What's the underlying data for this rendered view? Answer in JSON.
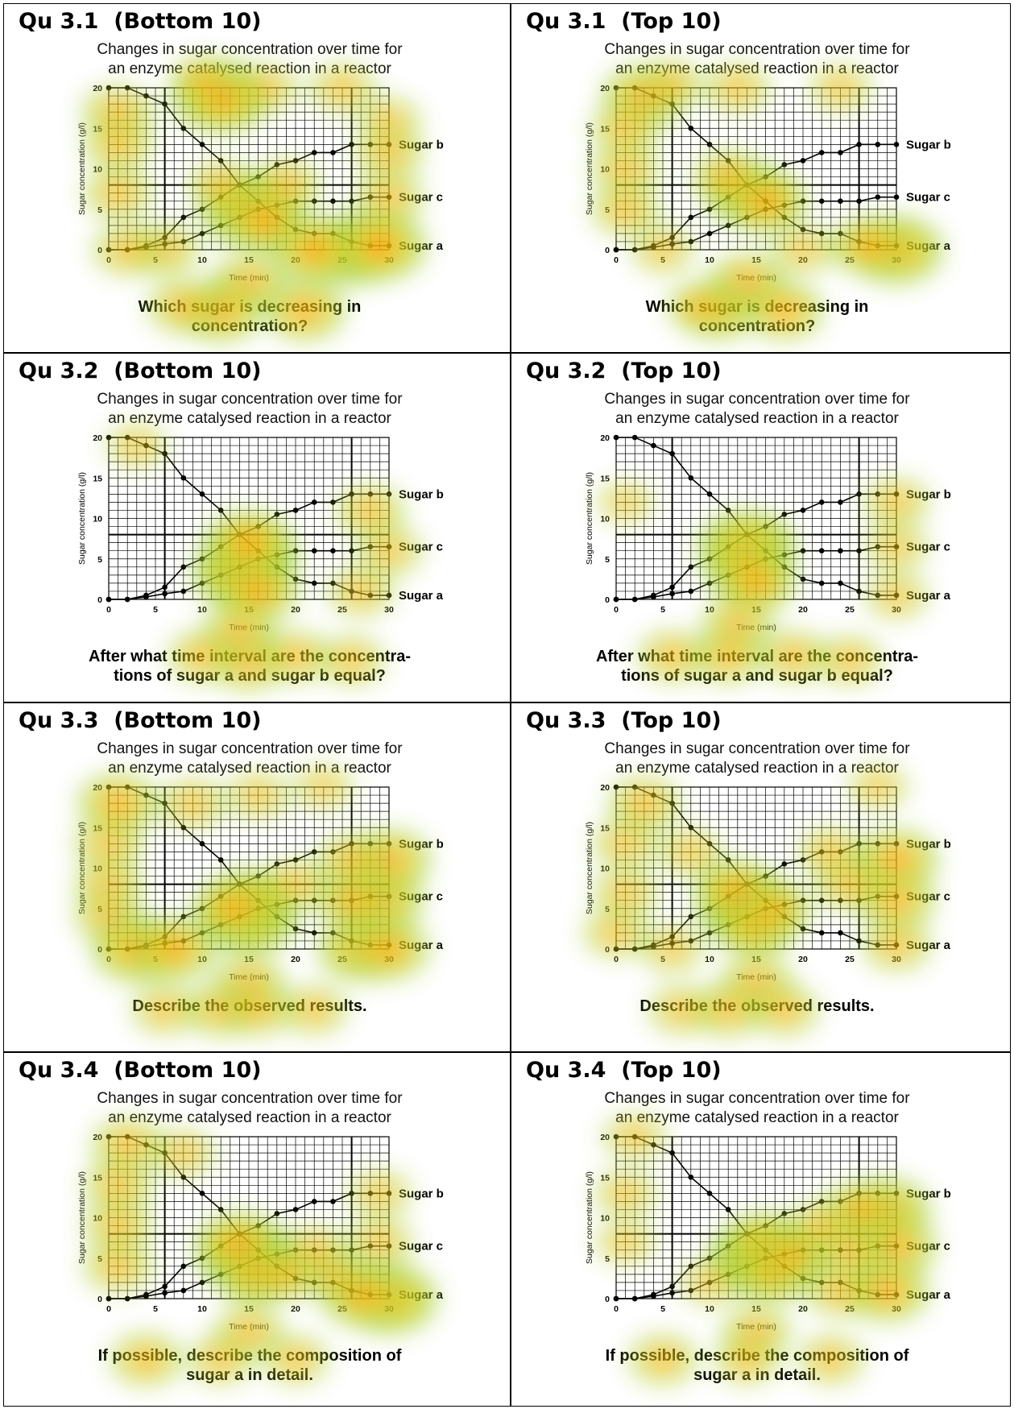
{
  "panels": [
    {
      "title": "Qu 3.1  (Bottom 10)",
      "question": [
        "Which sugar is decreasing in",
        "concentration?"
      ],
      "hotspots": [
        [
          12,
          19,
          1.0
        ],
        [
          1,
          17,
          0.55
        ],
        [
          1,
          13,
          0.5
        ],
        [
          1,
          7,
          0.5
        ],
        [
          15,
          5,
          1.0
        ],
        [
          17,
          3.5,
          0.7
        ],
        [
          26,
          0,
          0.95
        ],
        [
          29,
          0.5,
          0.9
        ],
        [
          22,
          0,
          0.8
        ],
        [
          6,
          0,
          0.5
        ],
        [
          2,
          0,
          0.5
        ],
        [
          19,
          8,
          0.5
        ],
        [
          12,
          8,
          0.45
        ],
        [
          30,
          12,
          0.5
        ],
        [
          30,
          6.5,
          0.5
        ],
        [
          30,
          16,
          0.4
        ],
        [
          17,
          20,
          0.4
        ],
        [
          25,
          20,
          0.45
        ],
        [
          10,
          21,
          0.4
        ],
        [
          15,
          -4,
          0.6
        ],
        [
          12,
          -7.5,
          0.75
        ],
        [
          21,
          -7.5,
          0.7
        ],
        [
          8,
          -7,
          0.55
        ]
      ]
    },
    {
      "title": "Qu 3.1  (Top 10)",
      "question": [
        "Which sugar is decreasing in",
        "concentration?"
      ],
      "hotspots": [
        [
          3,
          19,
          0.75
        ],
        [
          1,
          15,
          0.5
        ],
        [
          1,
          10,
          0.5
        ],
        [
          1,
          5,
          0.5
        ],
        [
          14,
          7,
          0.8
        ],
        [
          16,
          6,
          0.75
        ],
        [
          12,
          9,
          0.55
        ],
        [
          30,
          0,
          0.9
        ],
        [
          27,
          0.5,
          0.65
        ],
        [
          13,
          20,
          0.45
        ],
        [
          24,
          20,
          0.4
        ],
        [
          6,
          20.5,
          0.4
        ],
        [
          14,
          -4,
          0.65
        ],
        [
          11,
          -7.5,
          0.65
        ],
        [
          18,
          -7.5,
          0.65
        ],
        [
          9,
          -7,
          0.45
        ],
        [
          5,
          0,
          0.4
        ],
        [
          20,
          0,
          0.4
        ]
      ]
    },
    {
      "title": "Qu 3.2  (Bottom 10)",
      "question": [
        "After what time interval are the concentra-",
        "tions of sugar a and sugar b equal?"
      ],
      "hotspots": [
        [
          15,
          5,
          1.0
        ],
        [
          14,
          3,
          0.9
        ],
        [
          15,
          7,
          0.8
        ],
        [
          16,
          1,
          0.7
        ],
        [
          14,
          -4,
          0.6
        ],
        [
          15,
          -8,
          0.55
        ],
        [
          10,
          -7,
          0.5
        ],
        [
          20,
          -7,
          0.5
        ],
        [
          28,
          11,
          0.5
        ],
        [
          30,
          6,
          0.45
        ],
        [
          27,
          1,
          0.45
        ],
        [
          3,
          19,
          0.35
        ],
        [
          26,
          -7.5,
          0.45
        ]
      ]
    },
    {
      "title": "Qu 3.2  (Top 10)",
      "question": [
        "After what time interval are the concentra-",
        "tions of sugar a and sugar b equal?"
      ],
      "hotspots": [
        [
          14,
          6.5,
          1.0
        ],
        [
          14,
          4,
          0.8
        ],
        [
          15,
          2,
          0.65
        ],
        [
          13,
          -3,
          0.55
        ],
        [
          12,
          -7,
          0.55
        ],
        [
          6,
          -7,
          0.5
        ],
        [
          19,
          -7,
          0.5
        ],
        [
          25,
          -7.5,
          0.45
        ],
        [
          30,
          12,
          0.45
        ],
        [
          30,
          6.5,
          0.4
        ],
        [
          30,
          0.5,
          0.4
        ],
        [
          1,
          12,
          0.3
        ]
      ]
    },
    {
      "title": "Qu 3.3  (Bottom 10)",
      "question": [
        "Describe the observed results."
      ],
      "hotspots": [
        [
          1,
          18,
          0.7
        ],
        [
          0,
          13,
          0.5
        ],
        [
          0,
          8,
          0.5
        ],
        [
          0,
          4,
          0.5
        ],
        [
          15,
          4,
          1.0
        ],
        [
          15,
          6,
          0.8
        ],
        [
          13,
          5,
          0.6
        ],
        [
          3,
          0,
          0.85
        ],
        [
          7,
          0,
          0.75
        ],
        [
          27,
          0,
          0.8
        ],
        [
          30,
          0,
          0.7
        ],
        [
          29,
          6,
          0.8
        ],
        [
          30,
          11,
          0.75
        ],
        [
          26,
          6,
          0.55
        ],
        [
          26,
          11,
          0.5
        ],
        [
          20,
          8,
          0.45
        ],
        [
          15,
          -4,
          0.55
        ],
        [
          12,
          -7.5,
          0.55
        ],
        [
          16,
          -7.5,
          0.5
        ],
        [
          6,
          -7.5,
          0.45
        ],
        [
          22,
          -7.5,
          0.45
        ],
        [
          9,
          18,
          0.45
        ],
        [
          16,
          19,
          0.4
        ],
        [
          23,
          20,
          0.35
        ]
      ]
    },
    {
      "title": "Qu 3.3  (Top 10)",
      "question": [
        "Describe the observed results."
      ],
      "hotspots": [
        [
          14,
          5,
          1.0
        ],
        [
          13,
          7,
          0.8
        ],
        [
          15,
          3,
          0.75
        ],
        [
          17,
          5,
          0.55
        ],
        [
          3,
          18,
          0.55
        ],
        [
          1,
          13,
          0.45
        ],
        [
          1,
          7,
          0.45
        ],
        [
          0,
          2,
          0.45
        ],
        [
          30,
          11,
          0.75
        ],
        [
          30,
          6,
          0.65
        ],
        [
          30,
          0.5,
          0.5
        ],
        [
          25,
          8,
          0.5
        ],
        [
          23,
          12,
          0.45
        ],
        [
          15,
          -4,
          0.55
        ],
        [
          12,
          -7.5,
          0.55
        ],
        [
          18,
          -7.5,
          0.5
        ],
        [
          7,
          -7.5,
          0.45
        ],
        [
          8,
          12,
          0.4
        ],
        [
          6,
          0,
          0.4
        ],
        [
          28,
          20,
          0.35
        ]
      ]
    },
    {
      "title": "Qu 3.4  (Bottom 10)",
      "question": [
        "If possible, describe the composition of",
        "sugar a in detail."
      ],
      "hotspots": [
        [
          15,
          5,
          1.0
        ],
        [
          14,
          6.5,
          0.85
        ],
        [
          16,
          3,
          0.7
        ],
        [
          2,
          19,
          0.55
        ],
        [
          1,
          14,
          0.5
        ],
        [
          1,
          9,
          0.5
        ],
        [
          1,
          4,
          0.5
        ],
        [
          30,
          0,
          0.95
        ],
        [
          27,
          0.5,
          0.75
        ],
        [
          24,
          3,
          0.45
        ],
        [
          22,
          6,
          0.45
        ],
        [
          19,
          3,
          0.45
        ],
        [
          15,
          -4,
          0.5
        ],
        [
          4,
          -7.5,
          0.55
        ],
        [
          12,
          -7.5,
          0.45
        ],
        [
          20,
          -7.5,
          0.45
        ],
        [
          8,
          18,
          0.4
        ],
        [
          29,
          7,
          0.45
        ],
        [
          29,
          13,
          0.4
        ]
      ]
    },
    {
      "title": "Qu 3.4  (Top 10)",
      "question": [
        "If possible, describe the composition of",
        "sugar a in detail."
      ],
      "hotspots": [
        [
          15,
          5,
          1.0
        ],
        [
          16,
          6.5,
          0.85
        ],
        [
          17,
          3.5,
          0.75
        ],
        [
          19,
          5.5,
          0.55
        ],
        [
          29,
          11,
          0.8
        ],
        [
          30,
          6.5,
          0.7
        ],
        [
          29,
          1,
          0.75
        ],
        [
          26,
          11,
          0.6
        ],
        [
          25,
          6,
          0.55
        ],
        [
          24,
          1,
          0.5
        ],
        [
          22,
          9,
          0.45
        ],
        [
          2,
          20,
          0.4
        ],
        [
          1,
          13,
          0.4
        ],
        [
          1,
          7,
          0.35
        ],
        [
          15,
          -4,
          0.5
        ],
        [
          5,
          -7.5,
          0.5
        ],
        [
          14,
          -7.5,
          0.45
        ],
        [
          23,
          -7.5,
          0.45
        ],
        [
          10,
          2,
          0.35
        ]
      ]
    }
  ],
  "chart_data": {
    "type": "line",
    "title": [
      "Changes in sugar concentration  over time for",
      "an enzyme catalysed reaction  in a reactor"
    ],
    "xlabel": "Time (min)",
    "ylabel": "Sugar concentration (g/l)",
    "xlim": [
      0,
      30
    ],
    "ylim": [
      0,
      20
    ],
    "xticks": [
      0,
      5,
      10,
      15,
      20,
      25,
      30
    ],
    "yticks": [
      0,
      5,
      10,
      15,
      20
    ],
    "series": [
      {
        "name": "Sugar a",
        "x": [
          0,
          2,
          4,
          6,
          8,
          10,
          12,
          14,
          16,
          18,
          20,
          22,
          24,
          26,
          28,
          30
        ],
        "y": [
          20,
          20,
          19,
          18,
          15,
          13,
          11,
          8,
          6,
          4,
          2.5,
          2,
          2,
          1,
          0.5,
          0.5
        ]
      },
      {
        "name": "Sugar b",
        "x": [
          0,
          2,
          4,
          6,
          8,
          10,
          12,
          14,
          16,
          18,
          20,
          22,
          24,
          26,
          28,
          30
        ],
        "y": [
          0,
          0,
          0.5,
          1.5,
          4,
          5,
          6.5,
          8,
          9,
          10.5,
          11,
          12,
          12,
          13,
          13,
          13
        ]
      },
      {
        "name": "Sugar c",
        "x": [
          0,
          2,
          4,
          6,
          8,
          10,
          12,
          14,
          16,
          18,
          20,
          22,
          24,
          26,
          28,
          30
        ],
        "y": [
          0,
          0,
          0.3,
          0.7,
          1,
          2,
          3,
          4,
          5,
          5.5,
          6,
          6,
          6,
          6,
          6.5,
          6.5
        ]
      }
    ],
    "refline_x": [
      6,
      26
    ],
    "refline_y": [
      8
    ],
    "grid": true
  },
  "colors": {
    "heat_low": "#9acd32",
    "heat_mid": "#ffd700",
    "heat_high": "#ff2200",
    "line": "#000000"
  }
}
